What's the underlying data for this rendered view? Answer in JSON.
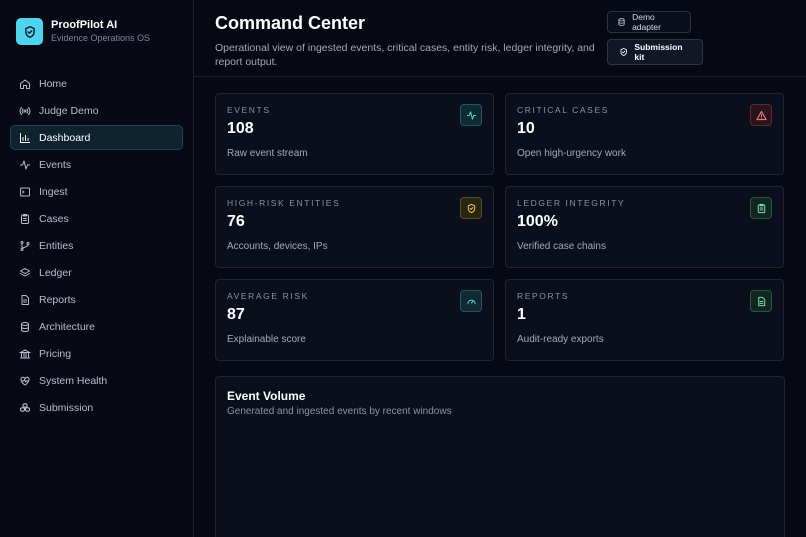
{
  "brand": {
    "name": "ProofPilot AI",
    "subtitle": "Evidence Operations OS"
  },
  "sidebar": {
    "items": [
      {
        "label": "Home",
        "icon": "home-icon",
        "active": false
      },
      {
        "label": "Judge Demo",
        "icon": "broadcast-icon",
        "active": false
      },
      {
        "label": "Dashboard",
        "icon": "bar-chart-icon",
        "active": true
      },
      {
        "label": "Events",
        "icon": "activity-icon",
        "active": false
      },
      {
        "label": "Ingest",
        "icon": "terminal-icon",
        "active": false
      },
      {
        "label": "Cases",
        "icon": "clipboard-icon",
        "active": false
      },
      {
        "label": "Entities",
        "icon": "git-branch-icon",
        "active": false
      },
      {
        "label": "Ledger",
        "icon": "layers-icon",
        "active": false
      },
      {
        "label": "Reports",
        "icon": "file-icon",
        "active": false
      },
      {
        "label": "Architecture",
        "icon": "database-icon",
        "active": false
      },
      {
        "label": "Pricing",
        "icon": "bank-icon",
        "active": false
      },
      {
        "label": "System Health",
        "icon": "heart-pulse-icon",
        "active": false
      },
      {
        "label": "Submission",
        "icon": "boxes-icon",
        "active": false
      }
    ]
  },
  "header": {
    "title": "Command Center",
    "subtitle": "Operational view of ingested events, critical cases, entity risk, ledger integrity, and report output.",
    "demo_button": "Demo adapter",
    "kit_button": "Submission kit"
  },
  "stats": [
    {
      "label": "EVENTS",
      "value": "108",
      "desc": "Raw event stream",
      "icon": "activity-icon",
      "tone": "cyan"
    },
    {
      "label": "CRITICAL CASES",
      "value": "10",
      "desc": "Open high-urgency work",
      "icon": "alert-triangle-icon",
      "tone": "red"
    },
    {
      "label": "HIGH-RISK ENTITIES",
      "value": "76",
      "desc": "Accounts, devices, IPs",
      "icon": "shield-icon",
      "tone": "amber"
    },
    {
      "label": "LEDGER INTEGRITY",
      "value": "100%",
      "desc": "Verified case chains",
      "icon": "clipboard-check-icon",
      "tone": "green"
    },
    {
      "label": "AVERAGE RISK",
      "value": "87",
      "desc": "Explainable score",
      "icon": "gauge-icon",
      "tone": "cyan"
    },
    {
      "label": "REPORTS",
      "value": "1",
      "desc": "Audit-ready exports",
      "icon": "file-text-icon",
      "tone": "green"
    }
  ],
  "event_volume": {
    "title": "Event Volume",
    "subtitle": "Generated and ingested events by recent windows"
  },
  "colors": {
    "accent": "#4fd4ef",
    "cyan": "#57d2e6",
    "red": "#f08a8a",
    "amber": "#e8c15a",
    "green": "#7fd6b0"
  }
}
